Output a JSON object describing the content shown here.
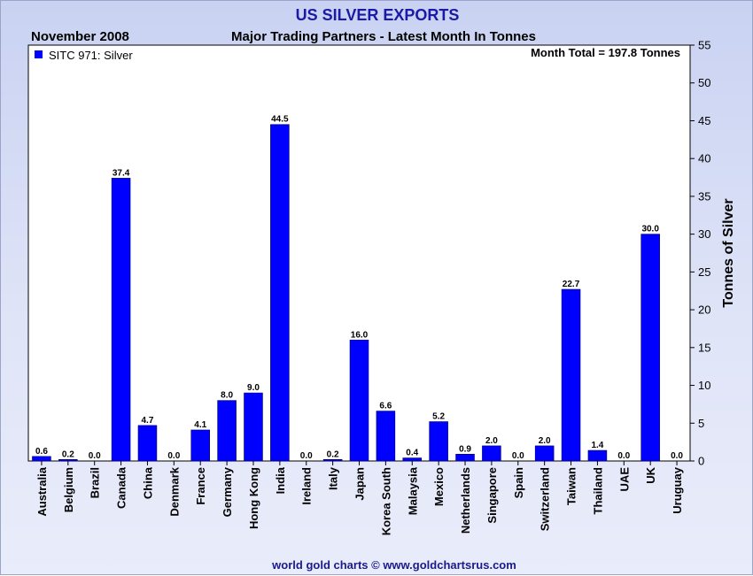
{
  "chart_data": {
    "type": "bar",
    "title": "US SILVER EXPORTS",
    "period": "November 2008",
    "subtitle": "Major Trading Partners - Latest Month In Tonnes",
    "ylabel": "Tonnes of Silver",
    "xlabel": "",
    "ylim": [
      0,
      55
    ],
    "ytick_step": 5,
    "grid": false,
    "legend_position": "top-left",
    "annotation": "Month Total = 197.8 Tonnes",
    "categories": [
      "Australia",
      "Belgium",
      "Brazil",
      "Canada",
      "China",
      "Denmark",
      "France",
      "Germany",
      "Hong Kong",
      "India",
      "Ireland",
      "Italy",
      "Japan",
      "Korea South",
      "Malaysia",
      "Mexico",
      "Netherlands",
      "Singapore",
      "Spain",
      "Switzerland",
      "Taiwan",
      "Thailand",
      "UAE",
      "UK",
      "Uruguay"
    ],
    "series": [
      {
        "name": "SITC 971: Silver",
        "color": "#0000ff",
        "values": [
          0.6,
          0.2,
          0.0,
          37.4,
          4.7,
          0.0,
          4.1,
          8.0,
          9.0,
          44.5,
          0.0,
          0.2,
          16.0,
          6.6,
          0.4,
          5.2,
          0.9,
          2.0,
          0.0,
          2.0,
          22.7,
          1.4,
          0.0,
          30.0,
          0.0
        ]
      }
    ],
    "value_labels": [
      "0.6",
      "0.2",
      "0.0",
      "37.4",
      "4.7",
      "0.0",
      "4.1",
      "8.0",
      "9.0",
      "44.5",
      "0.0",
      "0.2",
      "16.0",
      "6.6",
      "0.4",
      "5.2",
      "0.9",
      "2.0",
      "0.0",
      "2.0",
      "22.7",
      "1.4",
      "0.0",
      "30.0",
      "0.0"
    ]
  },
  "footer": {
    "credit": "world gold charts © www.goldchartsrus.com"
  },
  "colors": {
    "title": "#1a1aa6",
    "bar": "#0000ff",
    "bar_edge": "#000066",
    "credit": "#1a1a8c",
    "background": "#c9d2f2"
  }
}
